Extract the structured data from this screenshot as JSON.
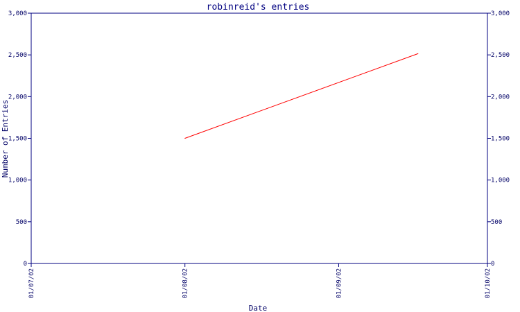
{
  "chart_data": {
    "type": "line",
    "title": "robinreid's entries",
    "xlabel": "Date",
    "ylabel": "Number of Entries",
    "x_ticks": [
      "01/07/02",
      "01/08/02",
      "01/09/02",
      "01/10/02"
    ],
    "x_tick_dates": [
      "2002-07-01",
      "2002-08-01",
      "2002-09-01",
      "2002-10-01"
    ],
    "xlim": [
      "2002-07-01",
      "2002-10-01"
    ],
    "ylim": [
      0,
      3000
    ],
    "y_ticks": [
      {
        "value": 0,
        "label": "0"
      },
      {
        "value": 500,
        "label": "500"
      },
      {
        "value": 1000,
        "label": "1,000"
      },
      {
        "value": 1500,
        "label": "1,500"
      },
      {
        "value": 2000,
        "label": "2,000"
      },
      {
        "value": 2500,
        "label": "2,500"
      },
      {
        "value": 3000,
        "label": "3,000"
      }
    ],
    "series": [
      {
        "color": "#ff0000",
        "points": [
          {
            "x": "2002-08-01",
            "y": 1500
          },
          {
            "x": "2002-09-17",
            "y": 2515
          }
        ]
      }
    ],
    "grid": false,
    "axis_color": "#000080"
  }
}
